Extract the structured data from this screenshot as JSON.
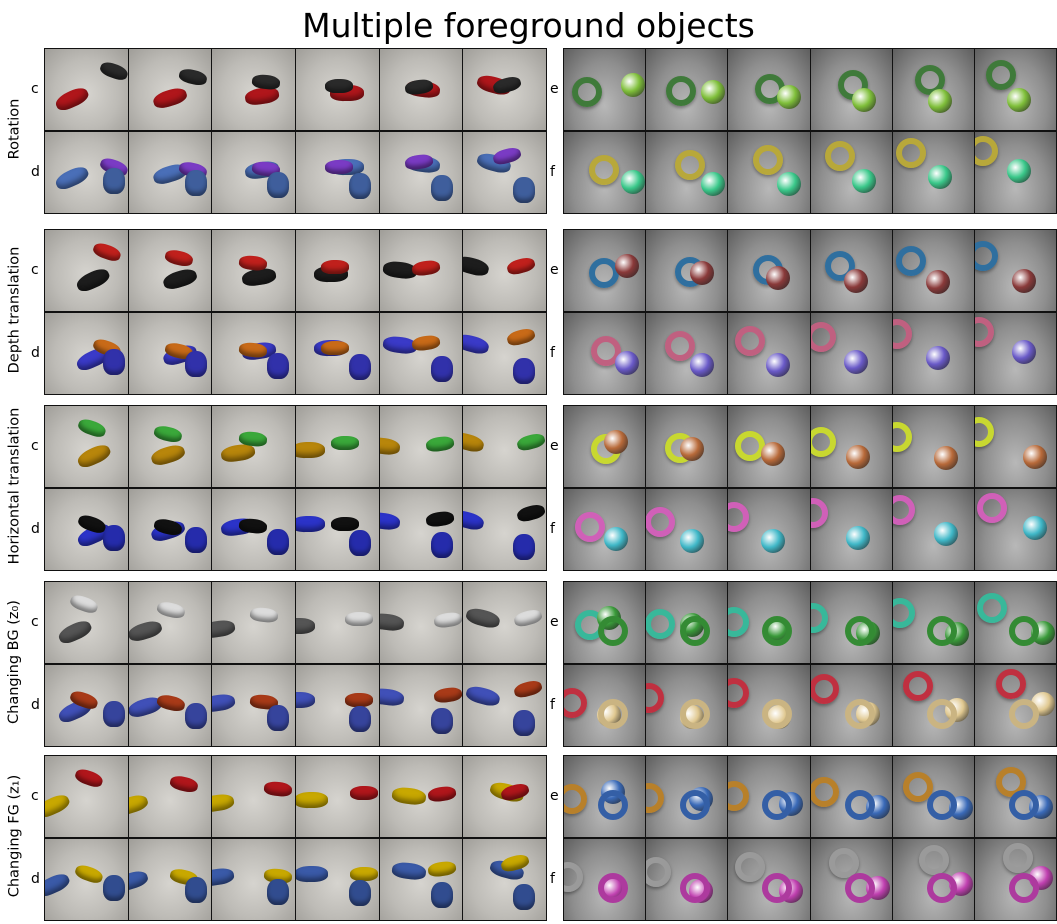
{
  "title": "Multiple foreground objects",
  "groups": [
    {
      "label": "Rotation",
      "left_rows": [
        "c",
        "d"
      ],
      "right_rows": [
        "e",
        "f"
      ]
    },
    {
      "label": "Depth translation",
      "left_rows": [
        "c",
        "d"
      ],
      "right_rows": [
        "e",
        "f"
      ]
    },
    {
      "label": "Horizontal translation",
      "left_rows": [
        "c",
        "d"
      ],
      "right_rows": [
        "e",
        "f"
      ]
    },
    {
      "label": "Changing BG (z₀)",
      "left_rows": [
        "c",
        "d"
      ],
      "right_rows": [
        "e",
        "f"
      ]
    },
    {
      "label": "Changing FG (z₁)",
      "left_rows": [
        "c",
        "d"
      ],
      "right_rows": [
        "e",
        "f"
      ]
    }
  ],
  "colors": {
    "left_bg": "#bdbbb6",
    "right_bg": "#8e8e8e",
    "border": "#111111"
  }
}
